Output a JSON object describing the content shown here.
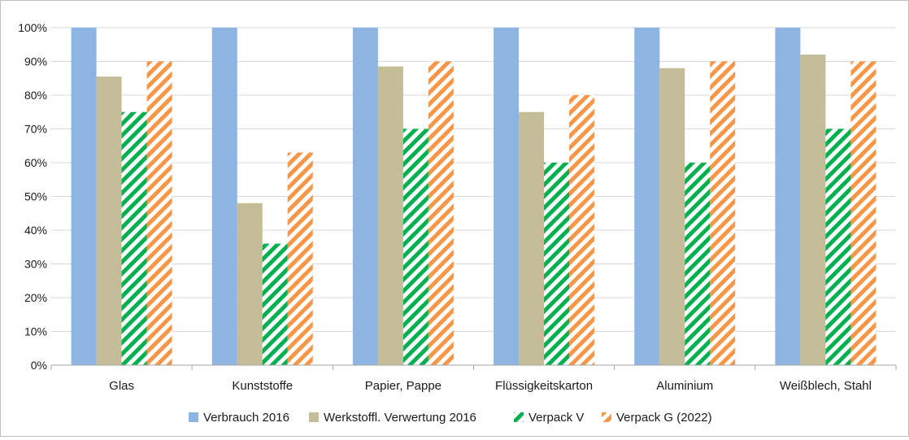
{
  "chart_data": {
    "type": "bar",
    "title": "",
    "xlabel": "",
    "ylabel": "",
    "ylim": [
      0,
      1
    ],
    "y_ticks": [
      "0%",
      "10%",
      "20%",
      "30%",
      "40%",
      "50%",
      "60%",
      "70%",
      "80%",
      "90%",
      "100%"
    ],
    "grid": true,
    "legend_position": "bottom",
    "categories": [
      "Glas",
      "Kunststoffe",
      "Papier, Pappe",
      "Flüssigkeitskarton",
      "Aluminium",
      "Weißblech, Stahl"
    ],
    "series": [
      {
        "name": "Verbrauch 2016",
        "values": [
          1.0,
          1.0,
          1.0,
          1.0,
          1.0,
          1.0
        ],
        "color": "#8eb4e3",
        "pattern": "solid"
      },
      {
        "name": "Werkstoffl. Verwertung 2016",
        "values": [
          0.855,
          0.48,
          0.885,
          0.75,
          0.88,
          0.92
        ],
        "color": "#c4bd97",
        "pattern": "solid"
      },
      {
        "name": "Verpack V",
        "values": [
          0.75,
          0.36,
          0.7,
          0.6,
          0.6,
          0.7
        ],
        "color": "#00b050",
        "pattern": "diagonal-stripes"
      },
      {
        "name": "Verpack G (2022)",
        "values": [
          0.9,
          0.63,
          0.9,
          0.8,
          0.9,
          0.9
        ],
        "color": "#f79646",
        "pattern": "diagonal-stripes"
      }
    ]
  }
}
